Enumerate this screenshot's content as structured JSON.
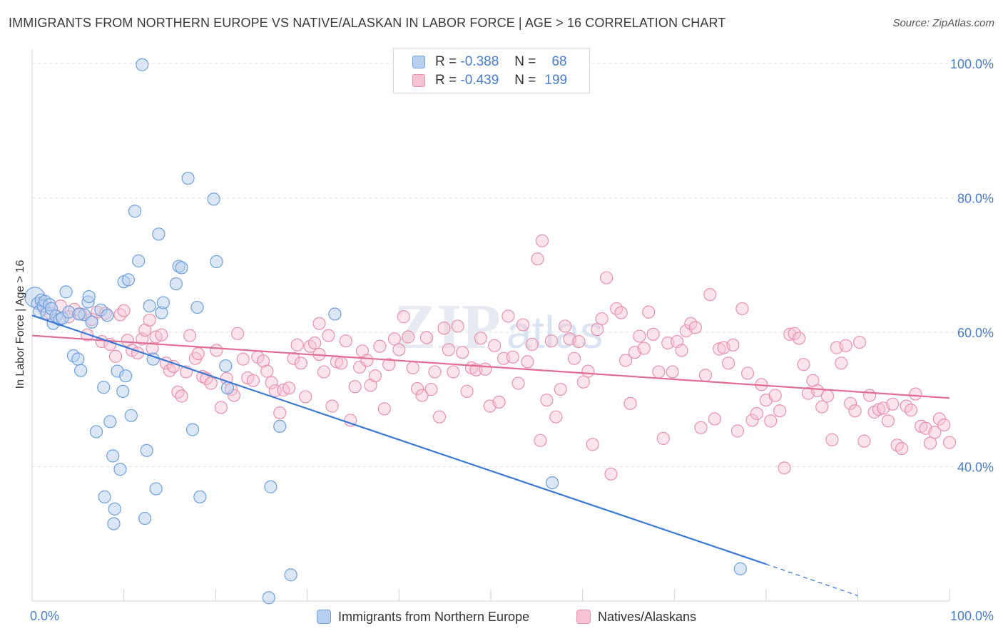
{
  "title": "IMMIGRANTS FROM NORTHERN EUROPE VS NATIVE/ALASKAN IN LABOR FORCE | AGE > 16 CORRELATION CHART",
  "source": "Source: ZipAtlas.com",
  "watermark": "ZIPatlas",
  "colors": {
    "blue_fill": "#b7d0f0",
    "blue_stroke": "#6e9fdc",
    "blue_line": "#3a78d6",
    "pink_fill": "#f6c3d2",
    "pink_stroke": "#e891ad",
    "pink_line": "#e26c98",
    "axis_label": "#4a7cc7",
    "grid": "#dde0e6"
  },
  "legend_top": {
    "rows": [
      {
        "r_label": "R =",
        "r_value": "-0.388",
        "n_label": "N =",
        "n_value": "68"
      },
      {
        "r_label": "R =",
        "r_value": "-0.439",
        "n_label": "N =",
        "n_value": "199"
      }
    ]
  },
  "legend_bottom": {
    "series1": "Immigrants from Northern Europe",
    "series2": "Natives/Alaskans"
  },
  "chart_data": {
    "type": "scatter",
    "title": "IMMIGRANTS FROM NORTHERN EUROPE VS NATIVE/ALASKAN IN LABOR FORCE | AGE > 16 CORRELATION CHART",
    "xlabel": "",
    "ylabel": "In Labor Force | Age > 16",
    "xlim": [
      0,
      100
    ],
    "ylim": [
      20,
      102
    ],
    "x_tick_labels": [
      "0.0%",
      "100.0%"
    ],
    "y_ticks": [
      40,
      60,
      80,
      100
    ],
    "y_tick_labels": [
      "40.0%",
      "60.0%",
      "80.0%",
      "100.0%"
    ],
    "grid": true,
    "series": [
      {
        "name": "Immigrants from Northern Europe",
        "R": -0.388,
        "N": 68,
        "trend": {
          "x0": 0,
          "y0": 62.5,
          "x1": 80,
          "y1": 25.5,
          "dash_to_x": 90,
          "dash_to_y": 20.8
        },
        "points": [
          [
            0.3,
            65.2
          ],
          [
            0.6,
            64.3
          ],
          [
            0.8,
            63.1
          ],
          [
            1.0,
            64.8
          ],
          [
            1.2,
            63.9
          ],
          [
            1.4,
            64.6
          ],
          [
            1.6,
            62.8
          ],
          [
            1.9,
            64.1
          ],
          [
            2.1,
            63.5
          ],
          [
            2.3,
            61.3
          ],
          [
            2.6,
            62.4
          ],
          [
            3.0,
            61.9
          ],
          [
            3.3,
            62.1
          ],
          [
            3.7,
            66.0
          ],
          [
            4.0,
            63.0
          ],
          [
            4.5,
            56.5
          ],
          [
            5.0,
            56.0
          ],
          [
            5.3,
            54.3
          ],
          [
            5.7,
            62.6
          ],
          [
            6.1,
            64.5
          ],
          [
            6.2,
            65.3
          ],
          [
            6.5,
            61.5
          ],
          [
            7.0,
            45.2
          ],
          [
            7.5,
            63.3
          ],
          [
            7.8,
            51.8
          ],
          [
            7.9,
            35.5
          ],
          [
            8.2,
            62.5
          ],
          [
            8.5,
            46.7
          ],
          [
            8.8,
            41.6
          ],
          [
            9.0,
            33.7
          ],
          [
            9.3,
            54.2
          ],
          [
            9.6,
            39.6
          ],
          [
            9.9,
            51.2
          ],
          [
            10.0,
            67.5
          ],
          [
            10.2,
            53.5
          ],
          [
            10.5,
            67.8
          ],
          [
            10.8,
            47.6
          ],
          [
            11.2,
            78.0
          ],
          [
            11.6,
            70.6
          ],
          [
            12.0,
            99.8
          ],
          [
            12.3,
            32.3
          ],
          [
            12.5,
            42.4
          ],
          [
            12.8,
            63.9
          ],
          [
            13.2,
            56.0
          ],
          [
            13.5,
            36.7
          ],
          [
            13.8,
            74.6
          ],
          [
            14.1,
            62.9
          ],
          [
            14.3,
            64.4
          ],
          [
            15.7,
            67.2
          ],
          [
            16.0,
            69.8
          ],
          [
            16.3,
            69.6
          ],
          [
            17.0,
            82.9
          ],
          [
            17.5,
            45.5
          ],
          [
            18.0,
            63.7
          ],
          [
            18.3,
            35.5
          ],
          [
            19.8,
            79.8
          ],
          [
            20.1,
            70.5
          ],
          [
            21.1,
            55.0
          ],
          [
            21.3,
            51.7
          ],
          [
            25.8,
            20.5
          ],
          [
            26.0,
            37.0
          ],
          [
            27.0,
            46.0
          ],
          [
            28.2,
            23.9
          ],
          [
            33.0,
            62.7
          ],
          [
            56.7,
            37.6
          ],
          [
            77.2,
            24.8
          ],
          [
            8.9,
            31.5
          ],
          [
            5.1,
            62.7
          ]
        ]
      },
      {
        "name": "Natives/Alaskans",
        "R": -0.439,
        "N": 199,
        "trend": {
          "x0": 0,
          "y0": 59.5,
          "x1": 100,
          "y1": 50.2
        },
        "points": [
          [
            1.0,
            64.2
          ],
          [
            1.3,
            63.5
          ],
          [
            2.0,
            62.8
          ],
          [
            3.1,
            63.9
          ],
          [
            4.0,
            62.3
          ],
          [
            4.6,
            63.4
          ],
          [
            5.3,
            62.7
          ],
          [
            6.0,
            59.6
          ],
          [
            6.5,
            61.9
          ],
          [
            7.1,
            63.0
          ],
          [
            7.6,
            58.6
          ],
          [
            8.0,
            62.8
          ],
          [
            8.5,
            58.2
          ],
          [
            9.1,
            56.4
          ],
          [
            9.6,
            62.6
          ],
          [
            10.0,
            63.2
          ],
          [
            10.4,
            58.8
          ],
          [
            10.9,
            57.3
          ],
          [
            11.5,
            56.9
          ],
          [
            12.0,
            59.0
          ],
          [
            12.3,
            60.3
          ],
          [
            12.8,
            61.8
          ],
          [
            13.1,
            57.6
          ],
          [
            13.5,
            59.3
          ],
          [
            14.1,
            59.6
          ],
          [
            14.6,
            55.4
          ],
          [
            15.0,
            54.3
          ],
          [
            15.4,
            54.9
          ],
          [
            15.9,
            51.1
          ],
          [
            16.3,
            50.5
          ],
          [
            16.8,
            54.1
          ],
          [
            17.2,
            59.5
          ],
          [
            17.8,
            56.1
          ],
          [
            18.1,
            56.8
          ],
          [
            18.6,
            53.4
          ],
          [
            19.0,
            53.1
          ],
          [
            19.5,
            52.4
          ],
          [
            20.1,
            57.3
          ],
          [
            20.6,
            48.8
          ],
          [
            21.2,
            53.1
          ],
          [
            21.7,
            51.5
          ],
          [
            22.0,
            50.6
          ],
          [
            22.4,
            59.8
          ],
          [
            23.0,
            56.0
          ],
          [
            23.5,
            53.2
          ],
          [
            24.1,
            52.8
          ],
          [
            24.6,
            56.3
          ],
          [
            25.2,
            55.7
          ],
          [
            25.6,
            54.2
          ],
          [
            26.1,
            52.5
          ],
          [
            26.5,
            51.3
          ],
          [
            27.0,
            48.0
          ],
          [
            27.4,
            51.4
          ],
          [
            28.0,
            51.7
          ],
          [
            28.5,
            56.1
          ],
          [
            28.9,
            58.1
          ],
          [
            29.3,
            55.4
          ],
          [
            29.8,
            50.4
          ],
          [
            30.3,
            57.9
          ],
          [
            30.8,
            58.4
          ],
          [
            31.3,
            56.7
          ],
          [
            31.8,
            54.1
          ],
          [
            32.3,
            59.5
          ],
          [
            32.7,
            49.0
          ],
          [
            33.2,
            55.6
          ],
          [
            33.7,
            55.4
          ],
          [
            34.2,
            58.7
          ],
          [
            34.7,
            46.9
          ],
          [
            35.2,
            51.9
          ],
          [
            35.7,
            54.8
          ],
          [
            36.0,
            57.2
          ],
          [
            36.5,
            55.8
          ],
          [
            36.9,
            52.1
          ],
          [
            37.4,
            53.5
          ],
          [
            37.9,
            57.9
          ],
          [
            38.4,
            48.6
          ],
          [
            38.9,
            55.2
          ],
          [
            39.5,
            59.0
          ],
          [
            40.0,
            57.4
          ],
          [
            40.5,
            62.3
          ],
          [
            41.0,
            59.3
          ],
          [
            41.5,
            54.7
          ],
          [
            42.0,
            51.6
          ],
          [
            42.5,
            50.6
          ],
          [
            43.0,
            59.2
          ],
          [
            43.5,
            51.5
          ],
          [
            43.9,
            54.1
          ],
          [
            44.4,
            47.4
          ],
          [
            44.9,
            60.6
          ],
          [
            45.4,
            57.4
          ],
          [
            45.9,
            54.1
          ],
          [
            46.4,
            60.9
          ],
          [
            46.9,
            57.0
          ],
          [
            47.4,
            51.2
          ],
          [
            47.9,
            54.7
          ],
          [
            48.4,
            54.4
          ],
          [
            48.9,
            59.1
          ],
          [
            49.4,
            54.5
          ],
          [
            49.9,
            49.0
          ],
          [
            50.4,
            58.0
          ],
          [
            50.9,
            49.6
          ],
          [
            51.4,
            56.1
          ],
          [
            51.9,
            62.4
          ],
          [
            52.4,
            56.3
          ],
          [
            53.0,
            52.4
          ],
          [
            53.5,
            61.1
          ],
          [
            54.0,
            55.6
          ],
          [
            54.5,
            58.2
          ],
          [
            55.1,
            70.9
          ],
          [
            55.6,
            73.6
          ],
          [
            56.1,
            49.9
          ],
          [
            56.6,
            58.7
          ],
          [
            57.1,
            47.4
          ],
          [
            57.6,
            51.5
          ],
          [
            58.1,
            60.9
          ],
          [
            58.6,
            59.0
          ],
          [
            59.1,
            56.1
          ],
          [
            59.6,
            58.6
          ],
          [
            60.1,
            52.6
          ],
          [
            60.6,
            54.2
          ],
          [
            61.1,
            43.3
          ],
          [
            61.6,
            60.4
          ],
          [
            62.1,
            62.0
          ],
          [
            62.6,
            68.1
          ],
          [
            63.1,
            38.9
          ],
          [
            63.7,
            63.5
          ],
          [
            64.2,
            62.9
          ],
          [
            64.7,
            55.8
          ],
          [
            65.2,
            49.4
          ],
          [
            65.7,
            57.0
          ],
          [
            66.2,
            59.4
          ],
          [
            66.7,
            57.6
          ],
          [
            67.2,
            63.0
          ],
          [
            67.7,
            59.7
          ],
          [
            68.3,
            54.1
          ],
          [
            68.8,
            44.2
          ],
          [
            69.3,
            58.4
          ],
          [
            69.8,
            54.1
          ],
          [
            70.3,
            58.6
          ],
          [
            70.8,
            57.3
          ],
          [
            71.3,
            60.2
          ],
          [
            71.8,
            61.3
          ],
          [
            72.3,
            60.7
          ],
          [
            72.9,
            45.8
          ],
          [
            73.4,
            53.6
          ],
          [
            73.9,
            65.6
          ],
          [
            74.4,
            47.1
          ],
          [
            74.9,
            57.5
          ],
          [
            75.4,
            57.7
          ],
          [
            75.9,
            55.4
          ],
          [
            76.4,
            58.1
          ],
          [
            76.9,
            45.3
          ],
          [
            77.4,
            63.5
          ],
          [
            78.0,
            53.9
          ],
          [
            78.5,
            46.9
          ],
          [
            79.0,
            47.9
          ],
          [
            79.5,
            52.2
          ],
          [
            80.0,
            49.9
          ],
          [
            80.5,
            46.8
          ],
          [
            81.0,
            50.6
          ],
          [
            81.5,
            48.3
          ],
          [
            82.0,
            39.8
          ],
          [
            82.6,
            59.7
          ],
          [
            83.1,
            59.8
          ],
          [
            83.6,
            59.1
          ],
          [
            84.1,
            55.2
          ],
          [
            84.6,
            50.9
          ],
          [
            85.1,
            52.8
          ],
          [
            85.6,
            51.3
          ],
          [
            86.1,
            48.9
          ],
          [
            86.7,
            50.5
          ],
          [
            87.2,
            44.0
          ],
          [
            87.7,
            57.7
          ],
          [
            88.2,
            55.4
          ],
          [
            88.7,
            58.0
          ],
          [
            89.2,
            49.4
          ],
          [
            89.7,
            48.3
          ],
          [
            90.2,
            58.5
          ],
          [
            90.7,
            43.8
          ],
          [
            91.3,
            50.6
          ],
          [
            91.8,
            48.1
          ],
          [
            92.3,
            48.5
          ],
          [
            92.8,
            48.7
          ],
          [
            93.3,
            46.8
          ],
          [
            93.8,
            49.3
          ],
          [
            94.3,
            43.2
          ],
          [
            94.8,
            42.7
          ],
          [
            95.3,
            49.0
          ],
          [
            95.8,
            48.4
          ],
          [
            96.3,
            50.8
          ],
          [
            96.9,
            46.0
          ],
          [
            97.4,
            45.7
          ],
          [
            97.9,
            43.5
          ],
          [
            98.4,
            45.1
          ],
          [
            98.9,
            47.1
          ],
          [
            99.4,
            46.2
          ],
          [
            100.0,
            43.6
          ],
          [
            55.4,
            43.9
          ],
          [
            31.3,
            61.3
          ]
        ]
      }
    ]
  }
}
